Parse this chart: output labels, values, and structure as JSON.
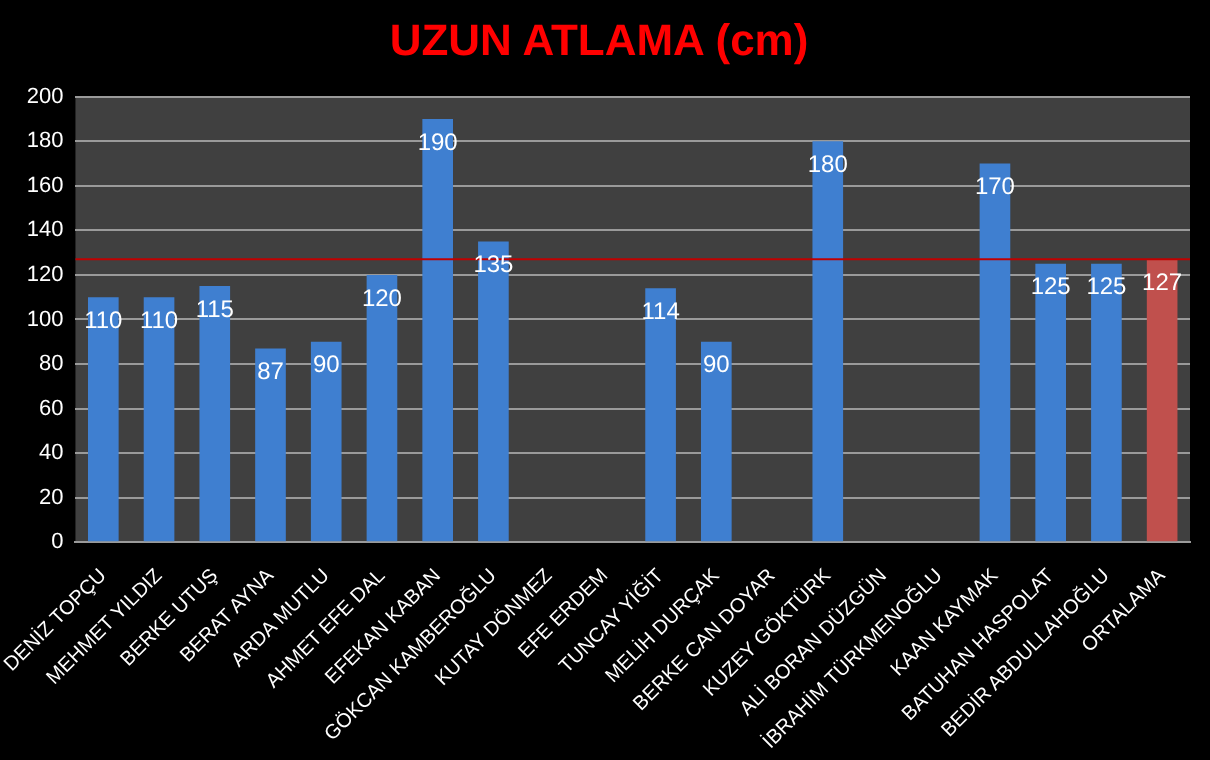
{
  "chart_data": {
    "type": "bar",
    "title": "UZUN ATLAMA (cm)",
    "categories": [
      "DENİZ TOPÇU",
      "MEHMET YILDIZ",
      "BERKE UTUŞ",
      "BERAT AYNA",
      "ARDA MUTLU",
      "AHMET EFE DAL",
      "EFEKAN KABAN",
      "GÖKCAN KAMBEROĞLU",
      "KUTAY DÖNMEZ",
      "EFE ERDEM",
      "TUNCAY YİĞİT",
      "MELİH DURÇAK",
      "BERKE CAN DOYAR",
      "KUZEY GÖKTÜRK",
      "ALİ BORAN DÜZGÜN",
      "İBRAHİM TÜRKMENOĞLU",
      "KAAN KAYMAK",
      "BATUHAN HASPOLAT",
      "BEDİR ABDULLAHOĞLU",
      "ORTALAMA"
    ],
    "values": [
      110,
      110,
      115,
      87,
      90,
      120,
      190,
      135,
      null,
      null,
      114,
      90,
      null,
      180,
      null,
      null,
      170,
      125,
      125,
      127
    ],
    "colors": [
      "#3f7fd0",
      "#3f7fd0",
      "#3f7fd0",
      "#3f7fd0",
      "#3f7fd0",
      "#3f7fd0",
      "#3f7fd0",
      "#3f7fd0",
      "#3f7fd0",
      "#3f7fd0",
      "#3f7fd0",
      "#3f7fd0",
      "#3f7fd0",
      "#3f7fd0",
      "#3f7fd0",
      "#3f7fd0",
      "#3f7fd0",
      "#3f7fd0",
      "#3f7fd0",
      "#c0504d"
    ],
    "ylim": [
      0,
      200
    ],
    "yticks": [
      0,
      20,
      40,
      60,
      80,
      100,
      120,
      140,
      160,
      180,
      200
    ],
    "grid": "y",
    "data_labels": true,
    "ref_lines": [
      {
        "axis": "y",
        "value": 127,
        "color": "#c00000"
      }
    ]
  }
}
